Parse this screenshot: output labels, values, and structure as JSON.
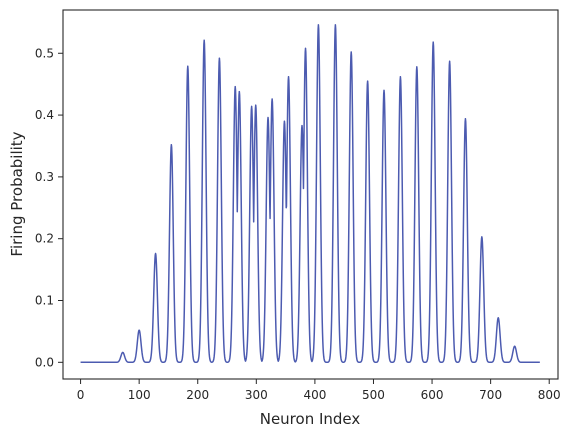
{
  "chart_data": {
    "type": "line",
    "title": "",
    "xlabel": "Neuron Index",
    "ylabel": "Firing Probability",
    "xlim": [
      -30,
      815
    ],
    "ylim": [
      -0.027,
      0.57
    ],
    "xticks": [
      0,
      100,
      200,
      300,
      400,
      500,
      600,
      700,
      800
    ],
    "xtick_labels": [
      "0",
      "100",
      "200",
      "300",
      "400",
      "500",
      "600",
      "700",
      "800"
    ],
    "yticks": [
      0.0,
      0.1,
      0.2,
      0.3,
      0.4,
      0.5
    ],
    "ytick_labels": [
      "0.0",
      "0.1",
      "0.2",
      "0.3",
      "0.4",
      "0.5"
    ],
    "grid": false,
    "line_color": "#4c5bb0",
    "peak_halfwidth": 7,
    "series": [
      {
        "peaks": [
          {
            "x": 72,
            "y": 0.016
          },
          {
            "x": 100,
            "y": 0.052
          },
          {
            "x": 128,
            "y": 0.176
          },
          {
            "x": 155,
            "y": 0.352
          },
          {
            "x": 183,
            "y": 0.479
          },
          {
            "x": 211,
            "y": 0.521
          },
          {
            "x": 237,
            "y": 0.492
          },
          {
            "x": 264,
            "y": 0.446
          },
          {
            "x": 271,
            "y": 0.438
          },
          {
            "x": 292,
            "y": 0.414
          },
          {
            "x": 299,
            "y": 0.416
          },
          {
            "x": 320,
            "y": 0.396
          },
          {
            "x": 327,
            "y": 0.426
          },
          {
            "x": 348,
            "y": 0.39
          },
          {
            "x": 355,
            "y": 0.462
          },
          {
            "x": 378,
            "y": 0.383
          },
          {
            "x": 384,
            "y": 0.508
          },
          {
            "x": 406,
            "y": 0.546
          },
          {
            "x": 435,
            "y": 0.546
          },
          {
            "x": 462,
            "y": 0.502
          },
          {
            "x": 490,
            "y": 0.455
          },
          {
            "x": 518,
            "y": 0.44
          },
          {
            "x": 546,
            "y": 0.462
          },
          {
            "x": 574,
            "y": 0.478
          },
          {
            "x": 602,
            "y": 0.518
          },
          {
            "x": 630,
            "y": 0.487
          },
          {
            "x": 657,
            "y": 0.394
          },
          {
            "x": 685,
            "y": 0.203
          },
          {
            "x": 713,
            "y": 0.072
          },
          {
            "x": 741,
            "y": 0.026
          }
        ],
        "x_start": 0,
        "x_end": 784
      }
    ]
  }
}
